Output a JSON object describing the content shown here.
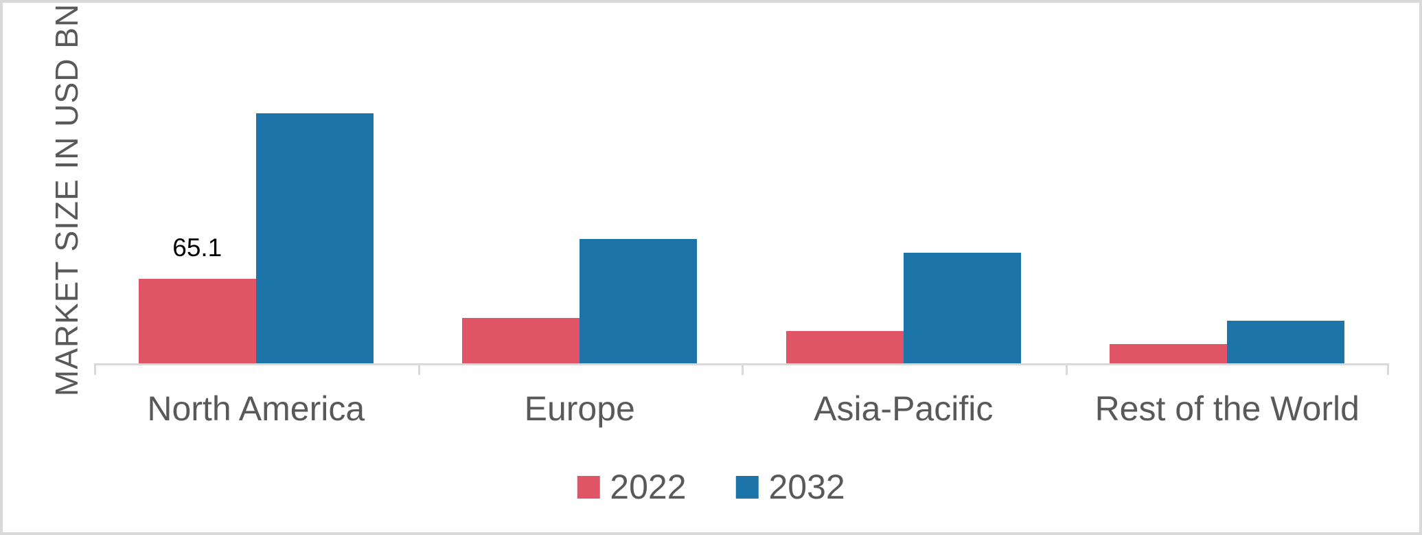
{
  "chart_data": {
    "type": "bar",
    "title": "",
    "xlabel": "",
    "ylabel": "MARKET SIZE IN USD BN",
    "categories": [
      "North America",
      "Europe",
      "Asia-Pacific",
      "Rest of the World"
    ],
    "series": [
      {
        "name": "2022",
        "color": "#e05566",
        "values": [
          65.1,
          35,
          25,
          15
        ],
        "data_labels": [
          "65.1",
          "",
          "",
          ""
        ]
      },
      {
        "name": "2032",
        "color": "#1d74a8",
        "values": [
          193,
          96,
          85,
          33
        ],
        "data_labels": [
          "",
          "",
          "",
          ""
        ]
      }
    ],
    "ylim": [
      0,
      278
    ],
    "grid": false,
    "y_axis_labels_visible": false,
    "x_tick_marks": true,
    "legend_position": "bottom"
  },
  "styles": {
    "background": "#ffffff",
    "text_color": "#595959",
    "axis_color": "#d9d9d9",
    "data_label_color": "#000000",
    "frame_border_color": "#d9d9d9"
  }
}
